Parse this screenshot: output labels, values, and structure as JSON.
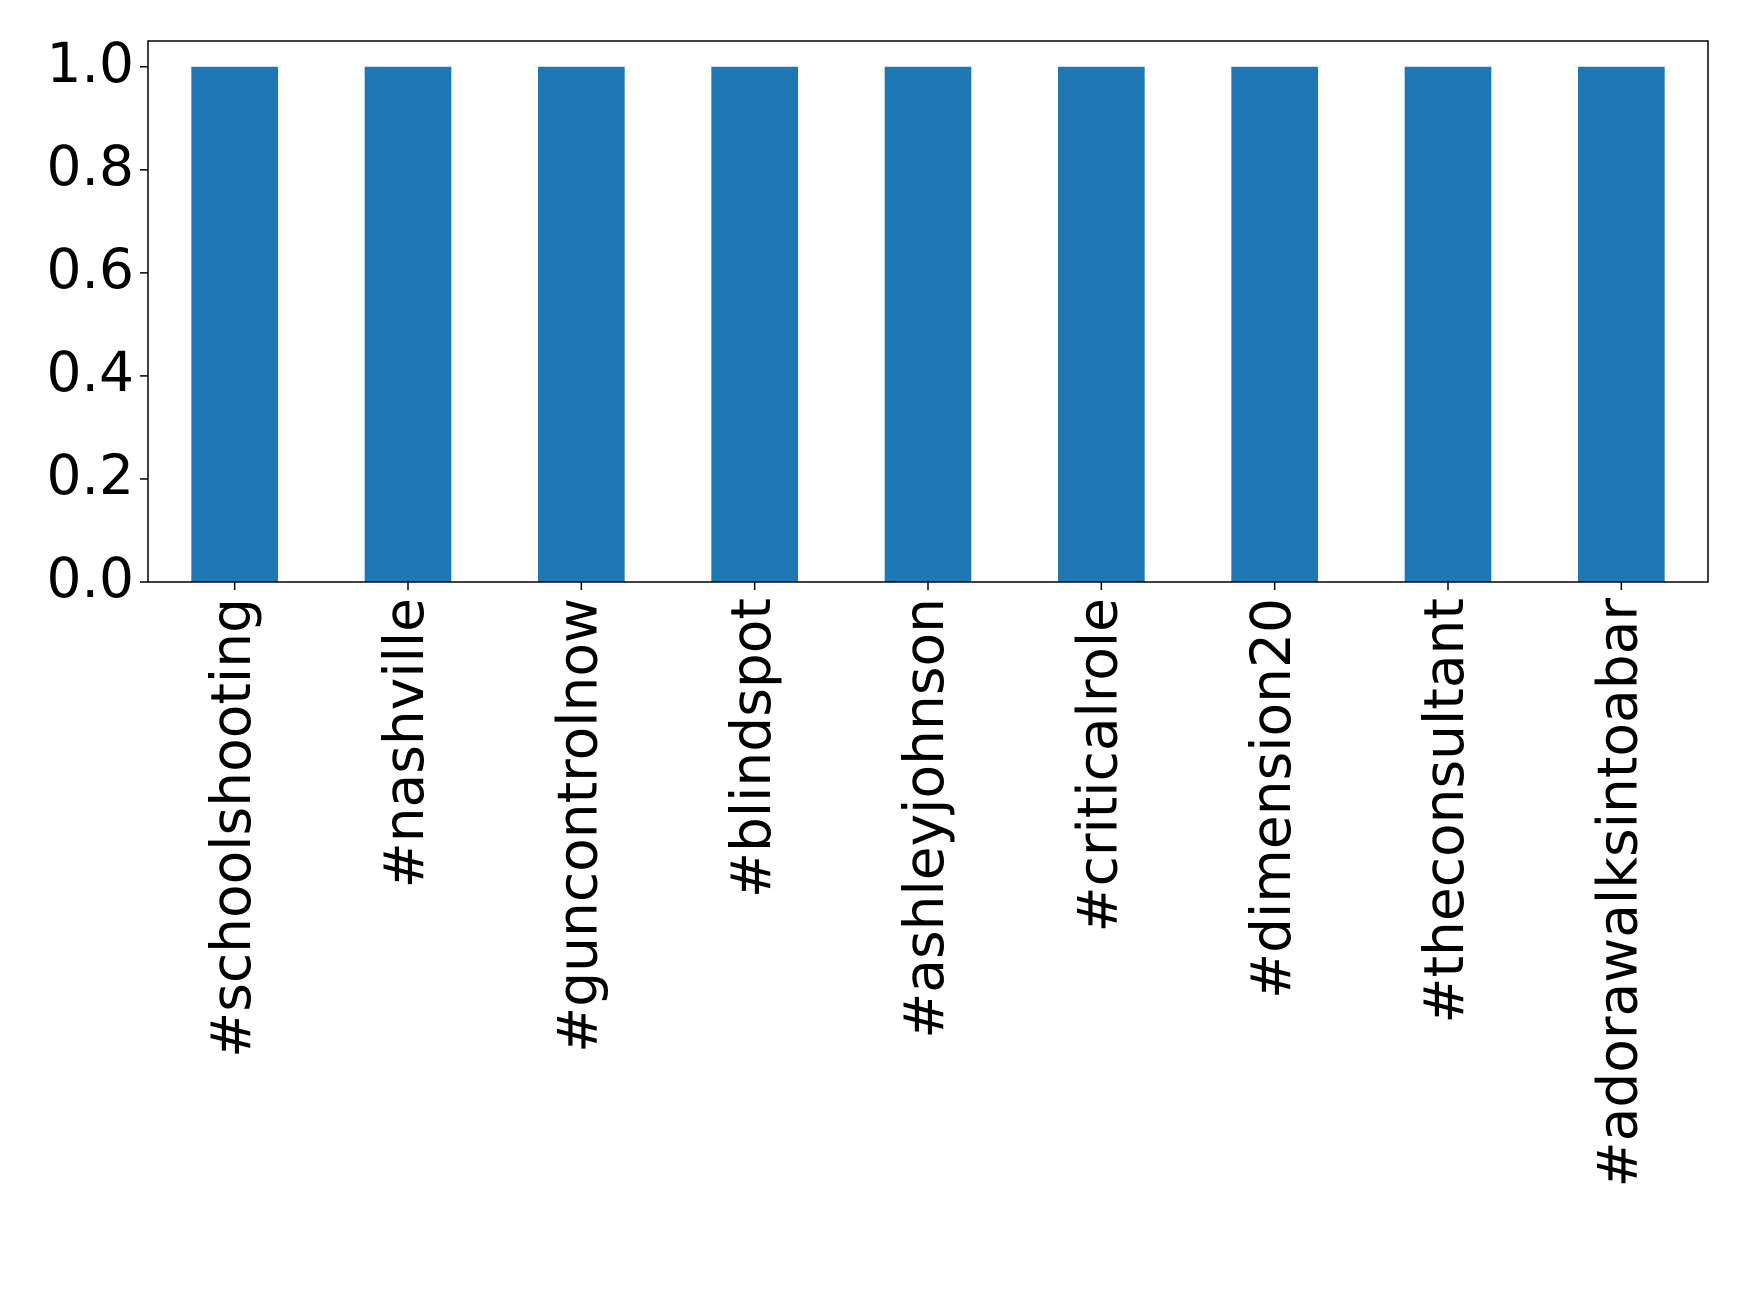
{
  "chart_data": {
    "type": "bar",
    "categories": [
      "#schoolshooting",
      "#nashville",
      "#guncontrolnow",
      "#blindspot",
      "#ashleyjohnson",
      "#criticalrole",
      "#dimension20",
      "#theconsultant",
      "#adorawalksintoabar"
    ],
    "values": [
      1,
      1,
      1,
      1,
      1,
      1,
      1,
      1,
      1
    ],
    "color": "#1f77b4",
    "ylim": [
      0,
      1.05
    ],
    "yticks": [
      {
        "value": 0,
        "label": "0.0"
      },
      {
        "value": 0.2,
        "label": "0.2"
      },
      {
        "value": 0.4,
        "label": "0.4"
      },
      {
        "value": 0.6,
        "label": "0.6"
      },
      {
        "value": 0.8,
        "label": "0.8"
      },
      {
        "value": 1,
        "label": "1.0"
      }
    ],
    "grid": false
  }
}
